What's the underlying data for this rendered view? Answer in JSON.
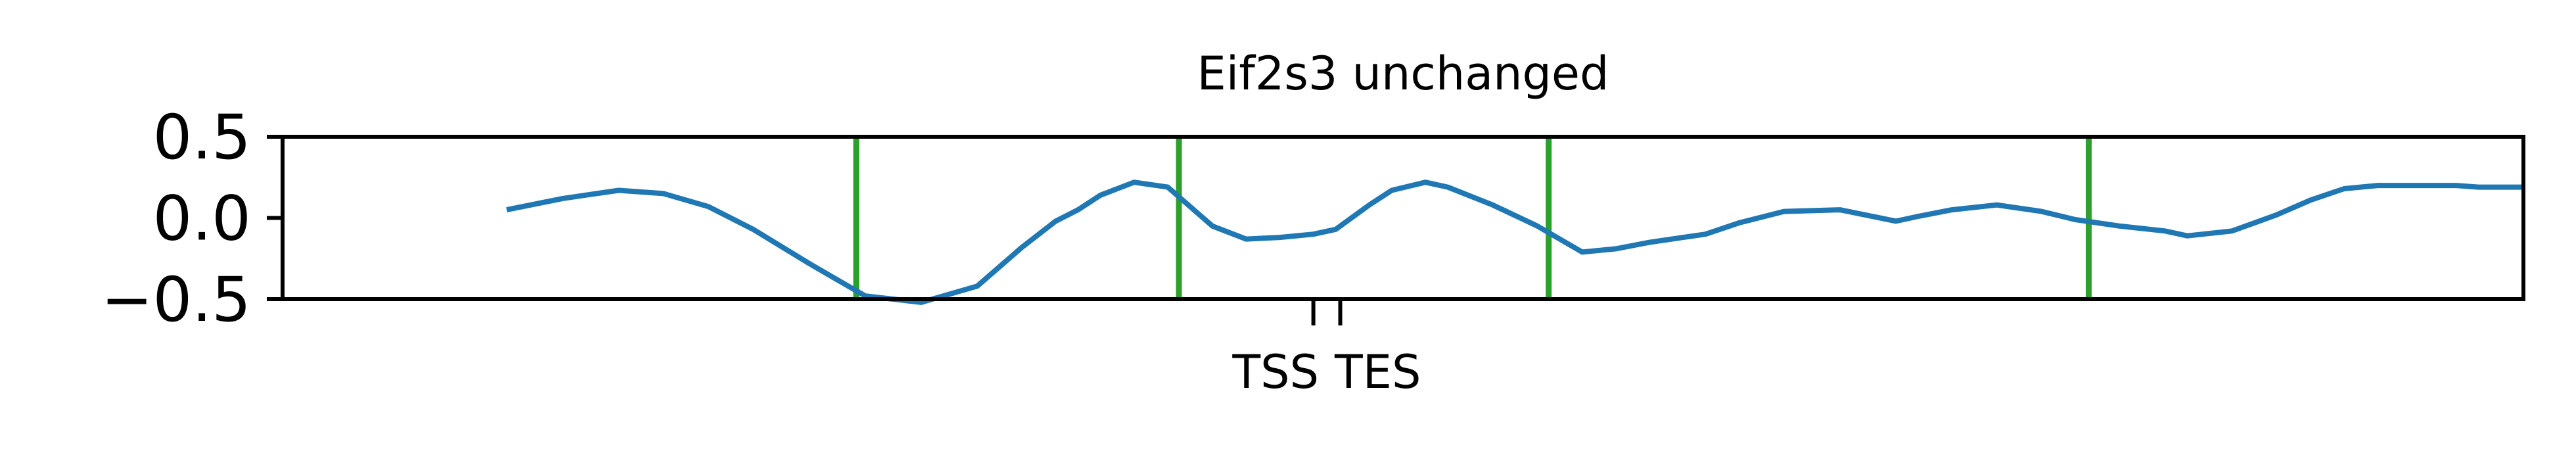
{
  "chart_data": {
    "type": "line",
    "title": "Eif2s3 unchanged",
    "xlabel": "",
    "ylabel": "",
    "xlim": [
      0,
      100
    ],
    "ylim": [
      -0.5,
      0.5
    ],
    "y_ticks": [
      {
        "value": 0.5,
        "label": "0.5"
      },
      {
        "value": 0.0,
        "label": "0.0"
      },
      {
        "value": -0.5,
        "label": "−0.5"
      }
    ],
    "x_ticks": [
      {
        "value": 46.0,
        "label": "TSS"
      },
      {
        "value": 47.2,
        "label": "TES"
      }
    ],
    "grid": false,
    "legend": "none",
    "series": [
      {
        "color": "#1f77b4",
        "x": [
          10.0,
          12.5,
          15.0,
          17.0,
          19.0,
          21.0,
          23.5,
          26.0,
          28.5,
          31.0,
          33.0,
          34.5,
          35.5,
          36.5,
          38.0,
          39.5,
          41.5,
          43.0,
          44.5,
          46.0,
          47.0,
          48.5,
          49.5,
          51.0,
          52.0,
          54.0,
          56.0,
          58.0,
          59.5,
          61.0,
          62.5,
          63.5,
          65.0,
          67.0,
          69.5,
          72.0,
          73.0,
          74.5,
          76.5,
          78.5,
          80.0,
          82.0,
          84.0,
          85.0,
          87.0,
          89.0,
          90.5,
          92.0,
          93.5,
          95.0,
          97.0,
          98.0,
          99.0,
          100.0
        ],
        "y": [
          0.05,
          0.12,
          0.17,
          0.15,
          0.07,
          -0.07,
          -0.28,
          -0.48,
          -0.52,
          -0.42,
          -0.18,
          -0.02,
          0.05,
          0.14,
          0.22,
          0.19,
          -0.05,
          -0.13,
          -0.12,
          -0.1,
          -0.07,
          0.08,
          0.17,
          0.22,
          0.19,
          0.08,
          -0.05,
          -0.21,
          -0.19,
          -0.15,
          -0.12,
          -0.1,
          -0.03,
          0.04,
          0.05,
          -0.02,
          0.01,
          0.05,
          0.08,
          0.04,
          -0.01,
          -0.05,
          -0.08,
          -0.11,
          -0.08,
          0.02,
          0.11,
          0.18,
          0.2,
          0.2,
          0.2,
          0.19,
          0.19,
          0.19
        ]
      }
    ],
    "vertical_lines": {
      "color": "#2ca02c",
      "x": [
        25.6,
        40.0,
        56.5,
        80.6
      ]
    }
  }
}
